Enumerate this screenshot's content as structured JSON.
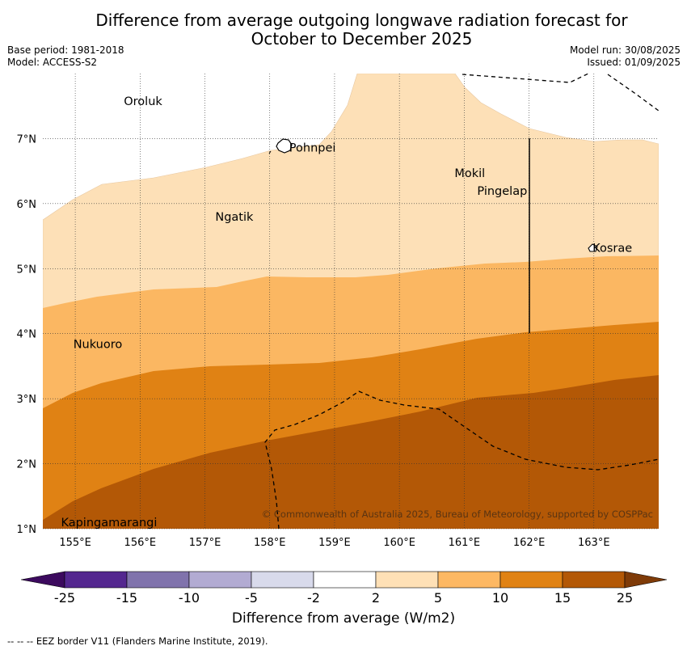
{
  "title_line1": "Difference from average outgoing longwave radiation forecast for",
  "title_line2": "October to December 2025",
  "base_period": "Base period: 1981-2018",
  "model": "Model: ACCESS-S2",
  "model_run": "Model run: 30/08/2025",
  "issued": "Issued: 01/09/2025",
  "copyright": "© Commonwealth of Australia 2025, Bureau of Meteorology, supported by COSPPac",
  "map": {
    "lon_range": [
      154.5,
      164.0
    ],
    "lat_range": [
      1.0,
      8.0
    ],
    "lon_ticks": [
      "155°E",
      "156°E",
      "157°E",
      "158°E",
      "159°E",
      "160°E",
      "161°E",
      "162°E",
      "163°E"
    ],
    "lat_ticks": [
      "1°N",
      "2°N",
      "3°N",
      "4°N",
      "5°N",
      "6°N",
      "7°N"
    ],
    "places": [
      {
        "name": "Oroluk",
        "lon": 155.75,
        "lat": 7.58
      },
      {
        "name": "Pohnpei",
        "lon": 158.3,
        "lat": 6.86
      },
      {
        "name": "Mokil",
        "lon": 160.85,
        "lat": 6.47
      },
      {
        "name": "Pingelap",
        "lon": 161.2,
        "lat": 6.2
      },
      {
        "name": "Ngatik",
        "lon": 157.16,
        "lat": 5.8
      },
      {
        "name": "Kosrae",
        "lon": 162.98,
        "lat": 5.32
      },
      {
        "name": "Nukuoro",
        "lon": 154.97,
        "lat": 3.84
      },
      {
        "name": "Kapingamarangi",
        "lon": 154.78,
        "lat": 1.1
      }
    ]
  },
  "colorbar": {
    "label": "Difference from average (W/m2)",
    "ticks": [
      "-25",
      "-15",
      "-10",
      "-5",
      "-2",
      "2",
      "5",
      "10",
      "15",
      "25"
    ],
    "colors": [
      "#3c0a5e",
      "#54278f",
      "#8073ac",
      "#b2abd2",
      "#d8daeb",
      "#ffffff",
      "#fee0b6",
      "#fdb863",
      "#e08214",
      "#b35806",
      "#7f3b08"
    ]
  },
  "footer": "--  --  -- EEZ border V11 (Flanders Marine Institute, 2019)."
}
